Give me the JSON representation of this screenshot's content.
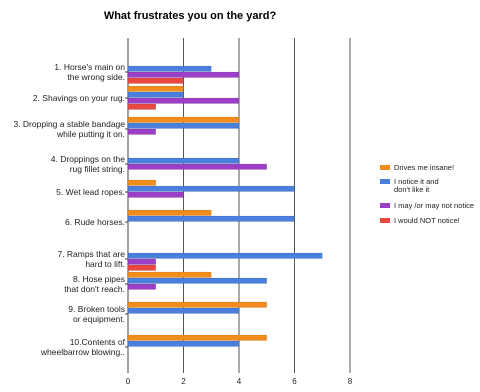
{
  "chart_data": {
    "type": "bar",
    "orientation": "horizontal",
    "title": "What frustrates you on the yard?",
    "xlabel": "",
    "ylabel": "",
    "xlim": [
      0,
      8
    ],
    "xticks": [
      0,
      2,
      4,
      6,
      8
    ],
    "grid": true,
    "legend_position": "right",
    "categories": [
      [
        "1. Horse's main on",
        "the wrong side."
      ],
      [
        "2. Shavings on your rug."
      ],
      [
        "3. Dropping a stable bandage",
        "while putting it on."
      ],
      [
        "4. Droppings on the",
        "rug fillet string."
      ],
      [
        "5. Wet lead ropes."
      ],
      [
        "6. Rude horses."
      ],
      [
        "7. Ramps that are",
        "hard to lift."
      ],
      [
        "8. Hose pipes",
        "that don't reach."
      ],
      [
        "9. Broken tools",
        "or equipment."
      ],
      [
        "10.Contents of",
        "wheelbarrow blowing.."
      ]
    ],
    "series": [
      {
        "name": "Drives me insane!",
        "color": "#f28c1e",
        "values": [
          0,
          2,
          4,
          0,
          1,
          3,
          0,
          3,
          5,
          5
        ]
      },
      {
        "name": "I notice it and\ndon't like it",
        "color": "#4a7fdc",
        "values": [
          3,
          2,
          4,
          4,
          6,
          6,
          7,
          5,
          4,
          4
        ]
      },
      {
        "name": "I may /or may not notice",
        "color": "#9b3fc7",
        "values": [
          4,
          4,
          1,
          5,
          2,
          0,
          1,
          1,
          0,
          0
        ]
      },
      {
        "name": "I would NOT notice!",
        "color": "#e8483f",
        "values": [
          2,
          1,
          0,
          0,
          0,
          0,
          1,
          0,
          0,
          0
        ]
      }
    ]
  }
}
